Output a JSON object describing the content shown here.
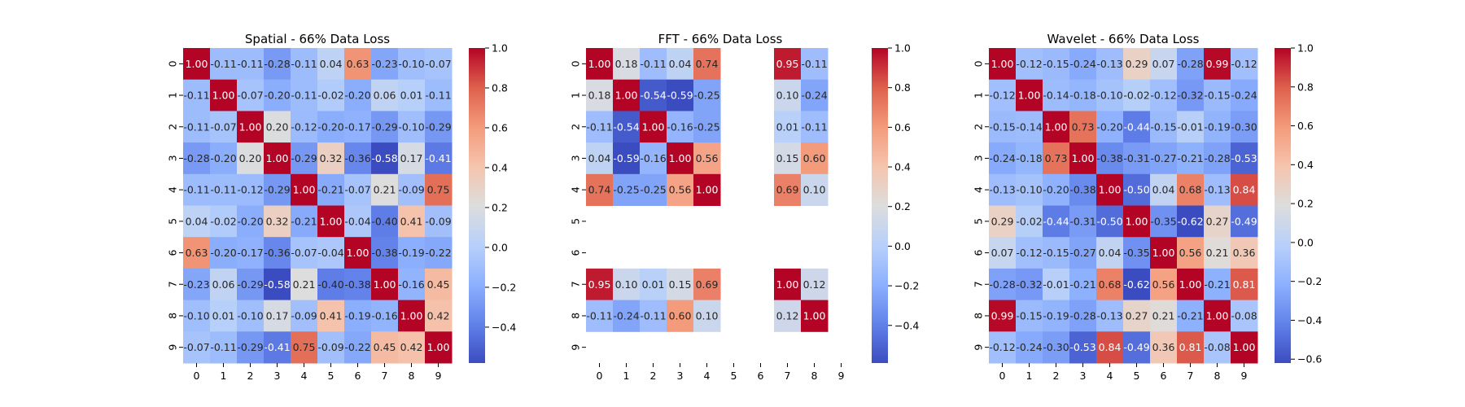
{
  "chart_data": [
    {
      "type": "heatmap",
      "title": "Spatial - 66% Data Loss",
      "x": [
        "0",
        "1",
        "2",
        "3",
        "4",
        "5",
        "6",
        "7",
        "8",
        "9"
      ],
      "y": [
        "0",
        "1",
        "2",
        "3",
        "4",
        "5",
        "6",
        "7",
        "8",
        "9"
      ],
      "values": [
        [
          1.0,
          -0.11,
          -0.11,
          -0.28,
          -0.11,
          0.04,
          0.63,
          -0.23,
          -0.1,
          -0.07
        ],
        [
          -0.11,
          1.0,
          -0.07,
          -0.2,
          -0.11,
          -0.02,
          -0.2,
          0.06,
          0.01,
          -0.11
        ],
        [
          -0.11,
          -0.07,
          1.0,
          0.2,
          -0.12,
          -0.2,
          -0.17,
          -0.29,
          -0.1,
          -0.29
        ],
        [
          -0.28,
          -0.2,
          0.2,
          1.0,
          -0.29,
          0.32,
          -0.36,
          -0.58,
          0.17,
          -0.41
        ],
        [
          -0.11,
          -0.11,
          -0.12,
          -0.29,
          1.0,
          -0.21,
          -0.07,
          0.21,
          -0.09,
          0.75
        ],
        [
          0.04,
          -0.02,
          -0.2,
          0.32,
          -0.21,
          1.0,
          -0.04,
          -0.4,
          0.41,
          -0.09
        ],
        [
          0.63,
          -0.2,
          -0.17,
          -0.36,
          -0.07,
          -0.04,
          1.0,
          -0.38,
          -0.19,
          -0.22
        ],
        [
          -0.23,
          0.06,
          -0.29,
          -0.58,
          0.21,
          -0.4,
          -0.38,
          1.0,
          -0.16,
          0.45
        ],
        [
          -0.1,
          0.01,
          -0.1,
          0.17,
          -0.09,
          0.41,
          -0.19,
          -0.16,
          1.0,
          0.42
        ],
        [
          -0.07,
          -0.11,
          -0.29,
          -0.41,
          0.75,
          -0.09,
          -0.22,
          0.45,
          0.42,
          1.0
        ]
      ],
      "vmin": -0.58,
      "vmax": 1.0,
      "colorbar_ticks": [
        1.0,
        0.8,
        0.6,
        0.4,
        0.2,
        0.0,
        -0.2,
        -0.4
      ],
      "colorbar_labels": [
        "1.0",
        "0.8",
        "0.6",
        "0.4",
        "0.2",
        "0.0",
        "−0.2",
        "−0.4"
      ],
      "colormap": "coolwarm"
    },
    {
      "type": "heatmap",
      "title": "FFT - 66% Data Loss",
      "x": [
        "0",
        "1",
        "2",
        "3",
        "4",
        "5",
        "6",
        "7",
        "8",
        "9"
      ],
      "y": [
        "0",
        "1",
        "2",
        "3",
        "4",
        "5",
        "6",
        "7",
        "8",
        "9"
      ],
      "values": [
        [
          1.0,
          0.18,
          -0.11,
          0.04,
          0.74,
          null,
          null,
          0.95,
          -0.11,
          null
        ],
        [
          0.18,
          1.0,
          -0.54,
          -0.59,
          -0.25,
          null,
          null,
          0.1,
          -0.24,
          null
        ],
        [
          -0.11,
          -0.54,
          1.0,
          -0.16,
          -0.25,
          null,
          null,
          0.01,
          -0.11,
          null
        ],
        [
          0.04,
          -0.59,
          -0.16,
          1.0,
          0.56,
          null,
          null,
          0.15,
          0.6,
          null
        ],
        [
          0.74,
          -0.25,
          -0.25,
          0.56,
          1.0,
          null,
          null,
          0.69,
          0.1,
          null
        ],
        [
          null,
          null,
          null,
          null,
          null,
          null,
          null,
          null,
          null,
          null
        ],
        [
          null,
          null,
          null,
          null,
          null,
          null,
          null,
          null,
          null,
          null
        ],
        [
          0.95,
          0.1,
          0.01,
          0.15,
          0.69,
          null,
          null,
          1.0,
          0.12,
          null
        ],
        [
          -0.11,
          -0.24,
          -0.11,
          0.6,
          0.1,
          null,
          null,
          0.12,
          1.0,
          null
        ],
        [
          null,
          null,
          null,
          null,
          null,
          null,
          null,
          null,
          null,
          null
        ]
      ],
      "vmin": -0.59,
      "vmax": 1.0,
      "colorbar_ticks": [
        1.0,
        0.8,
        0.6,
        0.4,
        0.2,
        0.0,
        -0.2,
        -0.4
      ],
      "colorbar_labels": [
        "1.0",
        "0.8",
        "0.6",
        "0.4",
        "0.2",
        "0.0",
        "−0.2",
        "−0.4"
      ],
      "colormap": "coolwarm"
    },
    {
      "type": "heatmap",
      "title": "Wavelet - 66% Data Loss",
      "x": [
        "0",
        "1",
        "2",
        "3",
        "4",
        "5",
        "6",
        "7",
        "8",
        "9"
      ],
      "y": [
        "0",
        "1",
        "2",
        "3",
        "4",
        "5",
        "6",
        "7",
        "8",
        "9"
      ],
      "values": [
        [
          1.0,
          -0.12,
          -0.15,
          -0.24,
          -0.13,
          0.29,
          0.07,
          -0.28,
          0.99,
          -0.12
        ],
        [
          -0.12,
          1.0,
          -0.14,
          -0.18,
          -0.1,
          -0.02,
          -0.12,
          -0.32,
          -0.15,
          -0.24
        ],
        [
          -0.15,
          -0.14,
          1.0,
          0.73,
          -0.2,
          -0.44,
          -0.15,
          -0.01,
          -0.19,
          -0.3
        ],
        [
          -0.24,
          -0.18,
          0.73,
          1.0,
          -0.38,
          -0.31,
          -0.27,
          -0.21,
          -0.28,
          -0.53
        ],
        [
          -0.13,
          -0.1,
          -0.2,
          -0.38,
          1.0,
          -0.5,
          0.04,
          0.68,
          -0.13,
          0.84
        ],
        [
          0.29,
          -0.02,
          -0.44,
          -0.31,
          -0.5,
          1.0,
          -0.35,
          -0.62,
          0.27,
          -0.49
        ],
        [
          0.07,
          -0.12,
          -0.15,
          -0.27,
          0.04,
          -0.35,
          1.0,
          0.56,
          0.21,
          0.36
        ],
        [
          -0.28,
          -0.32,
          -0.01,
          -0.21,
          0.68,
          -0.62,
          0.56,
          1.0,
          -0.21,
          0.81
        ],
        [
          0.99,
          -0.15,
          -0.19,
          -0.28,
          -0.13,
          0.27,
          0.21,
          -0.21,
          1.0,
          -0.08
        ],
        [
          -0.12,
          -0.24,
          -0.3,
          -0.53,
          0.84,
          -0.49,
          0.36,
          0.81,
          -0.08,
          1.0
        ]
      ],
      "vmin": -0.62,
      "vmax": 1.0,
      "colorbar_ticks": [
        1.0,
        0.8,
        0.6,
        0.4,
        0.2,
        0.0,
        -0.2,
        -0.4,
        -0.6
      ],
      "colorbar_labels": [
        "1.0",
        "0.8",
        "0.6",
        "0.4",
        "0.2",
        "0.0",
        "−0.2",
        "−0.4",
        "−0.6"
      ],
      "colormap": "coolwarm"
    }
  ]
}
